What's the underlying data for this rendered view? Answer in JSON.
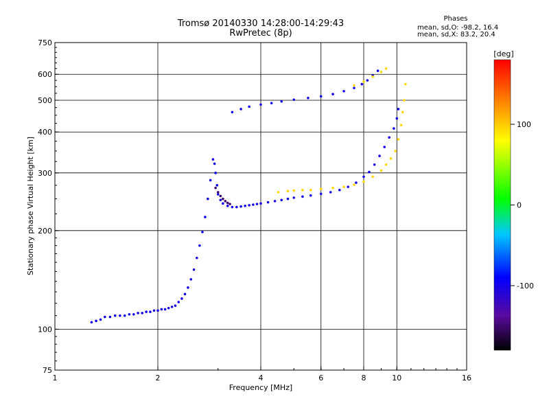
{
  "title_line1": "Tromsø 20140330 14:28:00-14:29:43",
  "title_line2": "RwPretec (8p)",
  "phases_label": "Phases",
  "phases_o": "mean, sd,O: -98.2, 16.4",
  "phases_x": "mean, sd,X:  83.2, 20.4",
  "colorbar_unit": "[deg]",
  "colorbar_ticks": [
    "100",
    "0",
    "-100"
  ],
  "colorbar_tick_values": [
    100,
    0,
    -100
  ],
  "colorbar_range": [
    -180,
    180
  ],
  "colors": {
    "o_trace": "#1a2ee8",
    "x_trace": "#d8e800",
    "dark_trace": "#3a0a8c",
    "grid": "#000000"
  },
  "chart_data": {
    "type": "scatter",
    "title": "Tromsø 20140330 14:28:00-14:29:43",
    "subtitle": "RwPretec (8p)",
    "xlabel": "Frequency [MHz]",
    "ylabel": "Stationary phase Virtual Height [km]",
    "xscale": "log",
    "yscale": "log",
    "xlim": [
      1,
      16
    ],
    "ylim": [
      75,
      750
    ],
    "grid": true,
    "x_ticks": [
      1,
      2,
      4,
      6,
      8,
      10,
      16
    ],
    "x_tick_labels": [
      "1",
      "2",
      "4",
      "6",
      "8",
      "10",
      "16"
    ],
    "y_ticks": [
      75,
      100,
      200,
      300,
      400,
      500,
      600,
      750
    ],
    "y_tick_labels": [
      "75",
      "100",
      "200",
      "300",
      "400",
      "500",
      "600",
      "750"
    ],
    "series": [
      {
        "color_phase": -100,
        "points": [
          [
            1.28,
            105
          ],
          [
            1.32,
            106
          ],
          [
            1.36,
            107
          ],
          [
            1.4,
            109
          ],
          [
            1.45,
            109
          ],
          [
            1.5,
            110
          ],
          [
            1.55,
            110
          ],
          [
            1.6,
            110
          ],
          [
            1.65,
            111
          ],
          [
            1.7,
            111
          ],
          [
            1.75,
            112
          ],
          [
            1.8,
            112
          ],
          [
            1.85,
            113
          ],
          [
            1.9,
            113
          ],
          [
            1.95,
            114
          ],
          [
            2.0,
            114
          ],
          [
            2.05,
            115
          ],
          [
            2.1,
            115
          ],
          [
            2.15,
            116
          ],
          [
            2.2,
            117
          ],
          [
            2.25,
            118
          ],
          [
            2.3,
            121
          ],
          [
            2.35,
            124
          ],
          [
            2.4,
            128
          ],
          [
            2.45,
            134
          ],
          [
            2.5,
            142
          ],
          [
            2.55,
            152
          ],
          [
            2.6,
            165
          ],
          [
            2.65,
            180
          ],
          [
            2.7,
            198
          ],
          [
            2.75,
            220
          ],
          [
            2.8,
            250
          ],
          [
            2.85,
            285
          ],
          [
            2.9,
            330
          ],
          [
            2.93,
            320
          ],
          [
            2.95,
            300
          ],
          [
            2.98,
            275
          ],
          [
            3.0,
            258
          ],
          [
            3.05,
            248
          ],
          [
            3.1,
            242
          ],
          [
            3.2,
            238
          ],
          [
            3.3,
            236
          ],
          [
            3.4,
            236
          ],
          [
            3.5,
            237
          ],
          [
            3.6,
            238
          ],
          [
            3.7,
            239
          ],
          [
            3.8,
            240
          ],
          [
            3.9,
            241
          ],
          [
            4.0,
            242
          ],
          [
            4.2,
            244
          ],
          [
            4.4,
            246
          ],
          [
            4.6,
            248
          ],
          [
            4.8,
            250
          ],
          [
            5.0,
            252
          ],
          [
            5.3,
            254
          ],
          [
            5.6,
            256
          ],
          [
            6.0,
            259
          ],
          [
            6.4,
            262
          ],
          [
            6.8,
            266
          ],
          [
            7.2,
            272
          ],
          [
            7.6,
            280
          ],
          [
            8.0,
            292
          ],
          [
            8.3,
            302
          ],
          [
            8.6,
            318
          ],
          [
            8.9,
            338
          ],
          [
            9.2,
            360
          ],
          [
            9.5,
            385
          ],
          [
            9.8,
            410
          ],
          [
            10.0,
            440
          ],
          [
            10.1,
            470
          ],
          [
            3.3,
            460
          ],
          [
            3.5,
            470
          ],
          [
            3.7,
            478
          ],
          [
            4.0,
            485
          ],
          [
            4.3,
            490
          ],
          [
            4.6,
            496
          ],
          [
            5.0,
            502
          ],
          [
            5.5,
            508
          ],
          [
            6.0,
            514
          ],
          [
            6.5,
            522
          ],
          [
            7.0,
            533
          ],
          [
            7.5,
            545
          ],
          [
            7.9,
            560
          ],
          [
            8.2,
            575
          ],
          [
            8.5,
            595
          ],
          [
            8.8,
            615
          ]
        ]
      },
      {
        "color_phase": -150,
        "points": [
          [
            2.95,
            270
          ],
          [
            3.0,
            262
          ],
          [
            3.05,
            255
          ],
          [
            3.1,
            250
          ],
          [
            3.15,
            246
          ],
          [
            3.2,
            243
          ],
          [
            3.25,
            241
          ]
        ]
      },
      {
        "color_phase": 95,
        "points": [
          [
            4.5,
            262
          ],
          [
            4.8,
            264
          ],
          [
            5.0,
            265
          ],
          [
            5.3,
            266
          ],
          [
            5.6,
            266
          ],
          [
            6.0,
            268
          ],
          [
            6.5,
            270
          ],
          [
            7.0,
            272
          ],
          [
            7.5,
            276
          ],
          [
            8.0,
            282
          ],
          [
            8.5,
            292
          ],
          [
            9.0,
            305
          ],
          [
            9.3,
            318
          ],
          [
            9.6,
            332
          ],
          [
            9.9,
            350
          ],
          [
            10.1,
            380
          ],
          [
            10.3,
            420
          ],
          [
            10.4,
            460
          ],
          [
            10.5,
            500
          ],
          [
            10.6,
            560
          ],
          [
            7.5,
            555
          ],
          [
            8.0,
            570
          ],
          [
            8.5,
            590
          ],
          [
            9.0,
            610
          ],
          [
            9.3,
            625
          ]
        ]
      }
    ]
  }
}
